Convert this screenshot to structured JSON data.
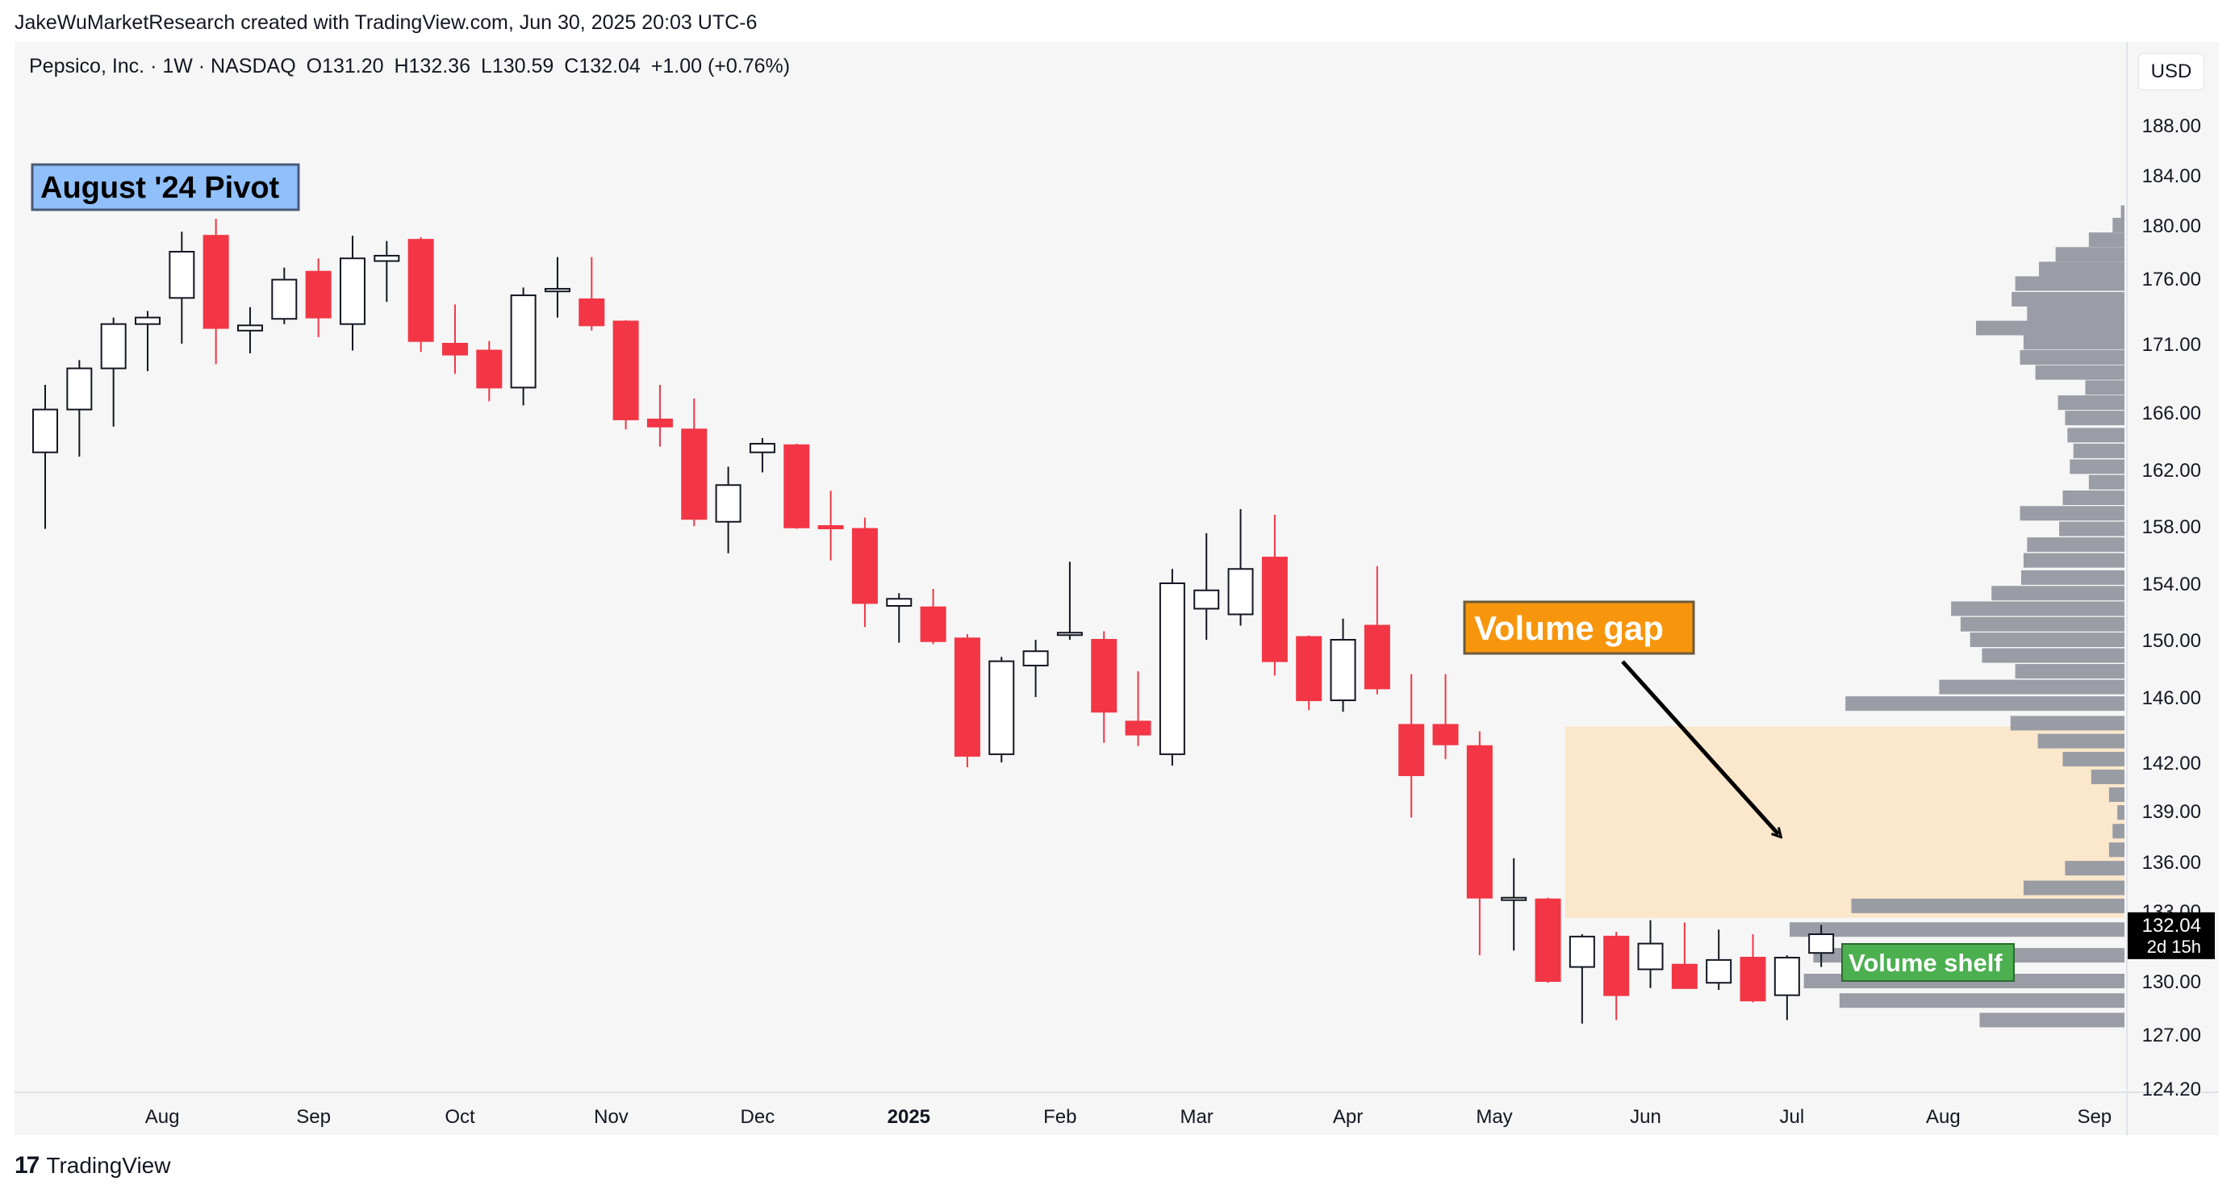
{
  "attribution": "JakeWuMarketResearch created with TradingView.com, Jun 30, 2025 20:03 UTC-6",
  "legend": {
    "symbol": "Pepsico, Inc. · 1W · NASDAQ",
    "open": "O131.20",
    "high": "H132.36",
    "low": "L130.59",
    "close": "C132.04",
    "change": "+1.00 (+0.76%)"
  },
  "currency_button": "USD",
  "price_tag": {
    "price": "132.04",
    "countdown": "2d 15h"
  },
  "footer": {
    "logo_text": "TradingView",
    "logo_mark": "17"
  },
  "colors": {
    "up": "#ffffff",
    "down": "#f23645",
    "wick_up": "#131722",
    "profile": "#9598a1",
    "gap_zone": "#fae7cc",
    "pivot_label_bg": "#90bff9",
    "gap_label_bg": "#f7960d",
    "shelf_label_bg": "#4caf50"
  },
  "chart_data": {
    "type": "candlestick",
    "y_ticks": [
      188.0,
      184.0,
      180.0,
      176.0,
      171.0,
      166.0,
      162.0,
      158.0,
      154.0,
      150.0,
      146.0,
      142.0,
      139.0,
      136.0,
      133.0,
      130.0,
      127.0,
      124.2
    ],
    "y_tick_labels": [
      "188.00",
      "184.00",
      "180.00",
      "176.00",
      "171.00",
      "166.00",
      "162.00",
      "158.00",
      "154.00",
      "150.00",
      "146.00",
      "142.00",
      "139.00",
      "136.00",
      "133.00",
      "130.00",
      "127.00",
      "124.20"
    ],
    "x_labels": [
      {
        "label": "Aug",
        "bold": false,
        "date": "2024-08-01"
      },
      {
        "label": "Sep",
        "bold": false,
        "date": "2024-09-01"
      },
      {
        "label": "Oct",
        "bold": false,
        "date": "2024-10-01"
      },
      {
        "label": "Nov",
        "bold": false,
        "date": "2024-11-01"
      },
      {
        "label": "Dec",
        "bold": false,
        "date": "2024-12-01"
      },
      {
        "label": "2025",
        "bold": true,
        "date": "2025-01-01"
      },
      {
        "label": "Feb",
        "bold": false,
        "date": "2025-02-01"
      },
      {
        "label": "Mar",
        "bold": false,
        "date": "2025-03-01"
      },
      {
        "label": "Apr",
        "bold": false,
        "date": "2025-04-01"
      },
      {
        "label": "May",
        "bold": false,
        "date": "2025-05-01"
      },
      {
        "label": "Jun",
        "bold": false,
        "date": "2025-06-01"
      },
      {
        "label": "Jul",
        "bold": false,
        "date": "2025-07-01"
      },
      {
        "label": "Aug",
        "bold": false,
        "date": "2025-08-01"
      },
      {
        "label": "Sep",
        "bold": false,
        "date": "2025-09-01"
      }
    ],
    "candles": [
      {
        "o": 163.2,
        "h": 168.0,
        "l": 157.8,
        "c": 166.2
      },
      {
        "o": 166.2,
        "h": 169.8,
        "l": 162.9,
        "c": 169.2
      },
      {
        "o": 169.2,
        "h": 173.0,
        "l": 165.0,
        "c": 172.5
      },
      {
        "o": 172.5,
        "h": 173.5,
        "l": 169.0,
        "c": 173.0
      },
      {
        "o": 174.5,
        "h": 179.5,
        "l": 171.0,
        "c": 178.0
      },
      {
        "o": 179.2,
        "h": 180.5,
        "l": 169.5,
        "c": 172.2
      },
      {
        "o": 172.0,
        "h": 173.8,
        "l": 170.3,
        "c": 172.4
      },
      {
        "o": 172.9,
        "h": 176.8,
        "l": 172.5,
        "c": 175.9
      },
      {
        "o": 176.5,
        "h": 177.5,
        "l": 171.5,
        "c": 173.0
      },
      {
        "o": 172.5,
        "h": 179.2,
        "l": 170.5,
        "c": 177.5
      },
      {
        "o": 177.3,
        "h": 178.8,
        "l": 174.2,
        "c": 177.7
      },
      {
        "o": 178.9,
        "h": 179.1,
        "l": 170.4,
        "c": 171.2
      },
      {
        "o": 171.0,
        "h": 174.0,
        "l": 168.8,
        "c": 170.2
      },
      {
        "o": 170.5,
        "h": 171.2,
        "l": 166.8,
        "c": 167.8
      },
      {
        "o": 167.8,
        "h": 175.3,
        "l": 166.5,
        "c": 174.7
      },
      {
        "o": 175.0,
        "h": 177.6,
        "l": 173.0,
        "c": 175.2
      },
      {
        "o": 174.4,
        "h": 177.6,
        "l": 172.0,
        "c": 172.4
      },
      {
        "o": 172.7,
        "h": 172.8,
        "l": 164.8,
        "c": 165.5
      },
      {
        "o": 165.5,
        "h": 168.0,
        "l": 163.6,
        "c": 165.0
      },
      {
        "o": 164.8,
        "h": 167.0,
        "l": 158.0,
        "c": 158.5
      },
      {
        "o": 158.3,
        "h": 162.2,
        "l": 156.1,
        "c": 160.9
      },
      {
        "o": 163.2,
        "h": 164.2,
        "l": 161.8,
        "c": 163.8
      },
      {
        "o": 163.7,
        "h": 163.8,
        "l": 157.8,
        "c": 157.9
      },
      {
        "o": 158.0,
        "h": 160.5,
        "l": 155.6,
        "c": 157.9
      },
      {
        "o": 157.8,
        "h": 158.6,
        "l": 150.9,
        "c": 152.6
      },
      {
        "o": 152.4,
        "h": 153.3,
        "l": 149.8,
        "c": 152.9
      },
      {
        "o": 152.3,
        "h": 153.6,
        "l": 149.7,
        "c": 149.9
      },
      {
        "o": 150.1,
        "h": 150.4,
        "l": 141.7,
        "c": 142.4
      },
      {
        "o": 142.5,
        "h": 148.8,
        "l": 142.0,
        "c": 148.5
      },
      {
        "o": 148.2,
        "h": 150.0,
        "l": 146.0,
        "c": 149.2
      },
      {
        "o": 150.5,
        "h": 155.5,
        "l": 150.0,
        "c": 150.5
      },
      {
        "o": 150.0,
        "h": 150.6,
        "l": 143.2,
        "c": 145.1
      },
      {
        "o": 144.5,
        "h": 147.8,
        "l": 143.0,
        "c": 143.7
      },
      {
        "o": 142.5,
        "h": 155.0,
        "l": 141.8,
        "c": 154.0
      },
      {
        "o": 152.2,
        "h": 157.5,
        "l": 150.0,
        "c": 153.5
      },
      {
        "o": 151.8,
        "h": 159.2,
        "l": 151.0,
        "c": 155.0
      },
      {
        "o": 155.8,
        "h": 158.8,
        "l": 147.5,
        "c": 148.5
      },
      {
        "o": 150.2,
        "h": 150.3,
        "l": 145.2,
        "c": 145.8
      },
      {
        "o": 145.8,
        "h": 151.5,
        "l": 145.1,
        "c": 150.0
      },
      {
        "o": 151.0,
        "h": 155.2,
        "l": 146.2,
        "c": 146.6
      },
      {
        "o": 144.3,
        "h": 147.6,
        "l": 138.6,
        "c": 141.2
      },
      {
        "o": 144.3,
        "h": 147.6,
        "l": 142.2,
        "c": 143.1
      },
      {
        "o": 143.0,
        "h": 143.9,
        "l": 131.1,
        "c": 133.8
      },
      {
        "o": 133.7,
        "h": 136.2,
        "l": 131.3,
        "c": 133.8
      },
      {
        "o": 133.7,
        "h": 133.8,
        "l": 129.9,
        "c": 130.0
      },
      {
        "o": 130.6,
        "h": 132.0,
        "l": 127.6,
        "c": 131.9
      },
      {
        "o": 131.9,
        "h": 132.1,
        "l": 127.8,
        "c": 129.2
      },
      {
        "o": 130.5,
        "h": 132.6,
        "l": 129.6,
        "c": 131.6
      },
      {
        "o": 130.7,
        "h": 132.5,
        "l": 129.6,
        "c": 129.6
      },
      {
        "o": 129.9,
        "h": 132.2,
        "l": 129.5,
        "c": 130.9
      },
      {
        "o": 131.0,
        "h": 132.0,
        "l": 128.8,
        "c": 128.9
      },
      {
        "o": 129.2,
        "h": 131.1,
        "l": 127.8,
        "c": 131.0
      },
      {
        "o": 131.2,
        "h": 132.4,
        "l": 130.6,
        "c": 132.0
      }
    ],
    "volume_profile": [
      {
        "price": 181.0,
        "vol": 3
      },
      {
        "price": 180.0,
        "vol": 10
      },
      {
        "price": 178.9,
        "vol": 30
      },
      {
        "price": 177.8,
        "vol": 58
      },
      {
        "price": 176.7,
        "vol": 72
      },
      {
        "price": 175.6,
        "vol": 92
      },
      {
        "price": 174.4,
        "vol": 95
      },
      {
        "price": 173.3,
        "vol": 82
      },
      {
        "price": 172.2,
        "vol": 125
      },
      {
        "price": 171.1,
        "vol": 85
      },
      {
        "price": 170.0,
        "vol": 88
      },
      {
        "price": 168.9,
        "vol": 75
      },
      {
        "price": 167.8,
        "vol": 33
      },
      {
        "price": 166.7,
        "vol": 56
      },
      {
        "price": 165.6,
        "vol": 50
      },
      {
        "price": 164.4,
        "vol": 48
      },
      {
        "price": 163.3,
        "vol": 43
      },
      {
        "price": 162.2,
        "vol": 46
      },
      {
        "price": 161.1,
        "vol": 30
      },
      {
        "price": 160.0,
        "vol": 52
      },
      {
        "price": 158.9,
        "vol": 88
      },
      {
        "price": 157.8,
        "vol": 55
      },
      {
        "price": 156.7,
        "vol": 82
      },
      {
        "price": 155.6,
        "vol": 85
      },
      {
        "price": 154.4,
        "vol": 87
      },
      {
        "price": 153.3,
        "vol": 112
      },
      {
        "price": 152.2,
        "vol": 146
      },
      {
        "price": 151.1,
        "vol": 138
      },
      {
        "price": 150.0,
        "vol": 130
      },
      {
        "price": 148.9,
        "vol": 120
      },
      {
        "price": 147.8,
        "vol": 92
      },
      {
        "price": 146.7,
        "vol": 156
      },
      {
        "price": 145.6,
        "vol": 235
      },
      {
        "price": 144.4,
        "vol": 96
      },
      {
        "price": 143.3,
        "vol": 73
      },
      {
        "price": 142.2,
        "vol": 52
      },
      {
        "price": 141.1,
        "vol": 28
      },
      {
        "price": 140.0,
        "vol": 13
      },
      {
        "price": 138.9,
        "vol": 6
      },
      {
        "price": 137.8,
        "vol": 10
      },
      {
        "price": 136.7,
        "vol": 13
      },
      {
        "price": 135.6,
        "vol": 50
      },
      {
        "price": 134.4,
        "vol": 85
      },
      {
        "price": 133.3,
        "vol": 230
      },
      {
        "price": 132.2,
        "vol": 282
      },
      {
        "price": 131.1,
        "vol": 262
      },
      {
        "price": 130.0,
        "vol": 270
      },
      {
        "price": 128.9,
        "vol": 240
      },
      {
        "price": 127.8,
        "vol": 122
      }
    ],
    "annotations": [
      {
        "id": "pivot",
        "text": "August '24 Pivot"
      },
      {
        "id": "gap",
        "text": "Volume gap"
      },
      {
        "id": "shelf",
        "text": "Volume shelf"
      }
    ],
    "gap_zone": {
      "start_week": 45,
      "price_low": 132.7,
      "price_high": 144.2
    }
  }
}
